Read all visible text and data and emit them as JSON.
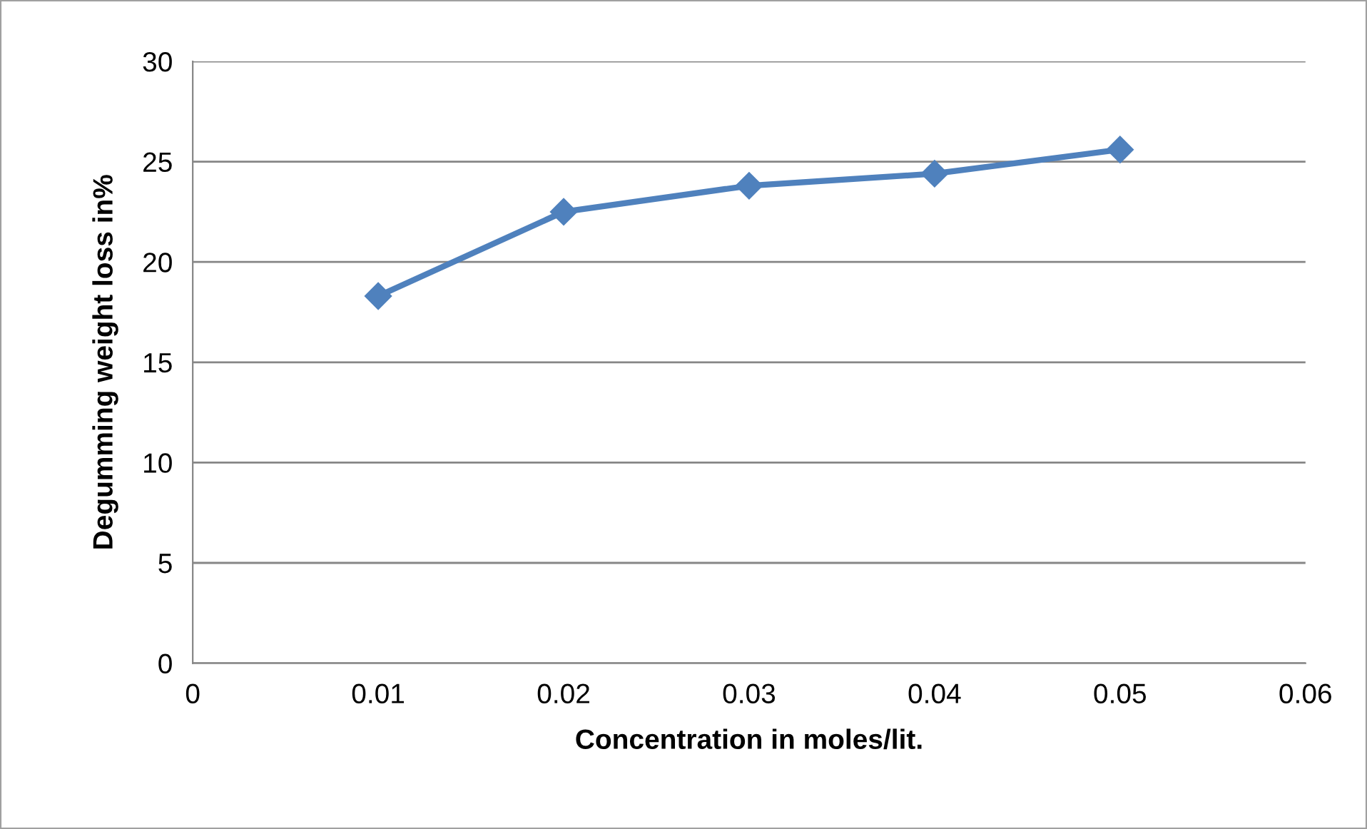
{
  "chart_data": {
    "type": "line",
    "xlabel": "Concentration in moles/lit.",
    "ylabel": "Degumming weight loss in%",
    "x": [
      0.01,
      0.02,
      0.03,
      0.04,
      0.05
    ],
    "series": [
      {
        "color": "#4f81bd",
        "values": [
          18.3,
          22.5,
          23.8,
          24.4,
          25.6
        ]
      }
    ],
    "xlim": [
      0,
      0.06
    ],
    "xticks": [
      0,
      0.01,
      0.02,
      0.03,
      0.04,
      0.05,
      0.06
    ],
    "ylim": [
      0,
      30
    ],
    "yticks": [
      0,
      5,
      10,
      15,
      20,
      25,
      30
    ],
    "grid": "y",
    "marker": "diamond",
    "line_style": "solid",
    "legend": false
  }
}
